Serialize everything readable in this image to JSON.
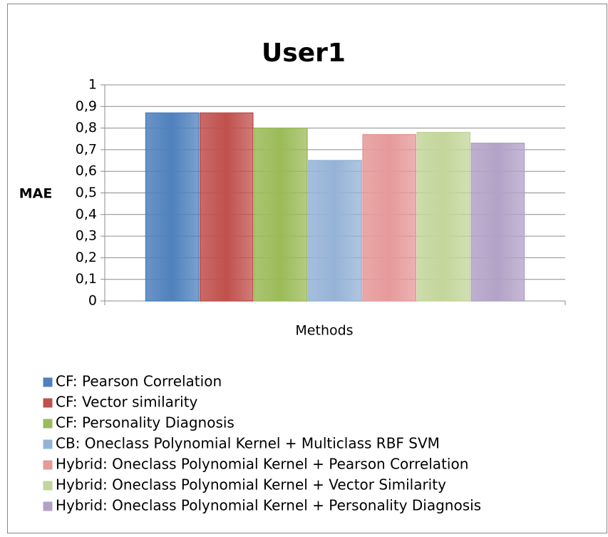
{
  "chart_data": {
    "type": "bar",
    "title": "User1",
    "ylabel": "MAE",
    "xlabel": "Methods",
    "categories": [
      null
    ],
    "series": [
      {
        "name": "CF: Pearson Correlation",
        "color": "#4f81bd",
        "values": [
          0.87
        ]
      },
      {
        "name": "CF: Vector similarity",
        "color": "#c0504d",
        "values": [
          0.87
        ]
      },
      {
        "name": "CF: Personality Diagnosis",
        "color": "#9bbb59",
        "values": [
          0.8
        ]
      },
      {
        "name": "CB: Oneclass Polynomial Kernel + Multiclass RBF SVM",
        "color": "#95b3d7",
        "values": [
          0.65
        ]
      },
      {
        "name": "Hybrid: Oneclass Polynomial Kernel + Pearson Correlation",
        "color": "#e6999a",
        "values": [
          0.77
        ]
      },
      {
        "name": "Hybrid: Oneclass Polynomial Kernel + Vector Similarity",
        "color": "#c3d69b",
        "values": [
          0.78
        ]
      },
      {
        "name": "Hybrid: Oneclass Polynomial Kernel + Personality Diagnosis",
        "color": "#b3a2c7",
        "values": [
          0.73
        ]
      }
    ],
    "ylim": [
      0,
      1
    ],
    "yticks": [
      0,
      {
        "value": 0.1,
        "label": "0,1"
      },
      {
        "value": 0.2,
        "label": "0,2"
      },
      {
        "value": 0.3,
        "label": "0,3"
      },
      {
        "value": 0.4,
        "label": "0,4"
      },
      {
        "value": 0.5,
        "label": "0,5"
      },
      {
        "value": 0.6,
        "label": "0,6"
      },
      {
        "value": 0.7,
        "label": "0,7"
      },
      {
        "value": 0.8,
        "label": "0,8"
      },
      {
        "value": 0.9,
        "label": "0,9"
      },
      1
    ],
    "grid": true,
    "legend": "bottom"
  }
}
